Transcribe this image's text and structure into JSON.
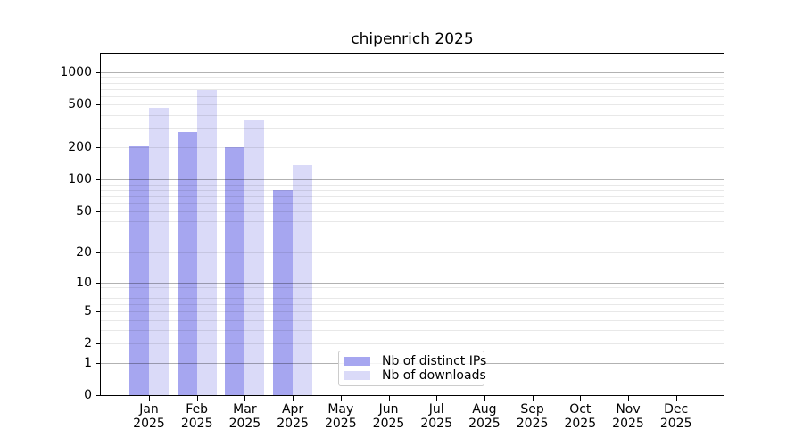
{
  "chart_data": {
    "type": "bar",
    "title": "chipenrich 2025",
    "yscale": "log1p",
    "ylim": [
      0,
      1490
    ],
    "grid": true,
    "legend_position": "inside-bottom-left-of-center",
    "categories": [
      "Jan",
      "Feb",
      "Mar",
      "Apr",
      "May",
      "Jun",
      "Jul",
      "Aug",
      "Sep",
      "Oct",
      "Nov",
      "Dec"
    ],
    "x_year_label": "2025",
    "yticks": [
      0,
      1,
      2,
      5,
      10,
      20,
      50,
      100,
      200,
      500,
      1000
    ],
    "series": [
      {
        "name": "Nb of distinct IPs",
        "color": "#a6a6f0",
        "values": [
          205,
          280,
          200,
          80,
          null,
          null,
          null,
          null,
          null,
          null,
          null,
          null
        ]
      },
      {
        "name": "Nb of downloads",
        "color": "#dadaf8",
        "values": [
          465,
          685,
          360,
          137,
          null,
          null,
          null,
          null,
          null,
          null,
          null,
          null
        ]
      }
    ],
    "colors": {
      "major_gridline": "rgba(0,0,0,0.30)",
      "minor_gridline": "rgba(0,0,0,0.09)",
      "axis": "#000000"
    }
  }
}
